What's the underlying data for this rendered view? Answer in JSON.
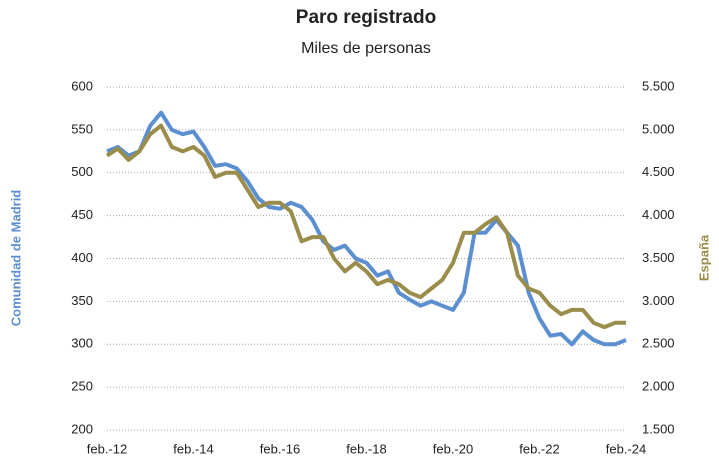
{
  "chart_data": {
    "type": "line",
    "title": "Paro registrado",
    "subtitle": "Miles de personas",
    "y_label": "Comunidad de Madrid",
    "y2_label": "España",
    "categories": [
      "feb.-12",
      null,
      null,
      null,
      null,
      null,
      null,
      null,
      "feb.-14",
      null,
      null,
      null,
      null,
      null,
      null,
      null,
      "feb.-16",
      null,
      null,
      null,
      null,
      null,
      null,
      null,
      "feb.-18",
      null,
      null,
      null,
      null,
      null,
      null,
      null,
      "feb.-20",
      null,
      null,
      null,
      null,
      null,
      null,
      null,
      "feb.-22",
      null,
      null,
      null,
      null,
      null,
      null,
      null,
      "feb.-24"
    ],
    "ylim": [
      200,
      600
    ],
    "yticks": [
      200,
      250,
      300,
      350,
      400,
      450,
      500,
      550,
      600
    ],
    "y2lim": [
      1500,
      5500
    ],
    "y2ticks": [
      {
        "value": 1500,
        "label": "1.500"
      },
      {
        "value": 2000,
        "label": "2.000"
      },
      {
        "value": 2500,
        "label": "2.500"
      },
      {
        "value": 3000,
        "label": "3.000"
      },
      {
        "value": 3500,
        "label": "3.500"
      },
      {
        "value": 4000,
        "label": "4.000"
      },
      {
        "value": 4500,
        "label": "4.500"
      },
      {
        "value": 5000,
        "label": "5.000"
      },
      {
        "value": 5500,
        "label": "5.500"
      }
    ],
    "grid": true,
    "series": [
      {
        "name": "Comunidad de Madrid",
        "color": "#5b8fd0",
        "axis": "y",
        "values": [
          525,
          530,
          520,
          525,
          555,
          570,
          550,
          545,
          548,
          530,
          508,
          510,
          505,
          490,
          470,
          460,
          458,
          465,
          460,
          445,
          420,
          410,
          415,
          400,
          395,
          380,
          385,
          360,
          352,
          345,
          350,
          345,
          340,
          360,
          430,
          430,
          445,
          430,
          415,
          360,
          330,
          310,
          312,
          300,
          315,
          305,
          300,
          300,
          305
        ]
      },
      {
        "name": "España",
        "color": "#9a8c4a",
        "axis": "y2",
        "values": [
          4700,
          4780,
          4650,
          4750,
          4950,
          5050,
          4800,
          4750,
          4800,
          4700,
          4450,
          4500,
          4500,
          4300,
          4100,
          4150,
          4150,
          4050,
          3700,
          3750,
          3750,
          3500,
          3350,
          3450,
          3350,
          3200,
          3250,
          3200,
          3100,
          3050,
          3150,
          3250,
          3450,
          3800,
          3800,
          3900,
          3980,
          3800,
          3300,
          3150,
          3100,
          2950,
          2850,
          2900,
          2900,
          2750,
          2700,
          2750,
          2750
        ]
      }
    ]
  }
}
